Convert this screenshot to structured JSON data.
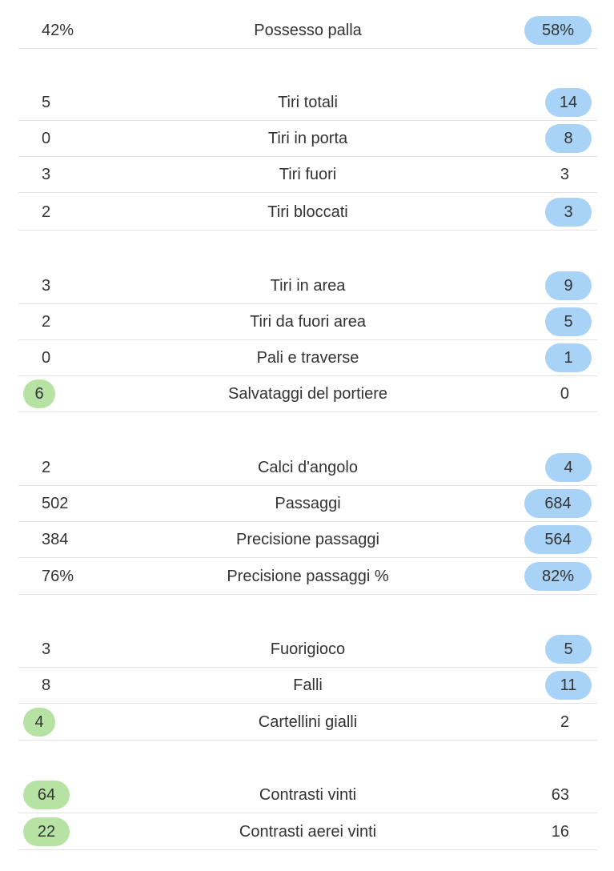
{
  "stats": [
    {
      "label": "Possesso palla",
      "home": "42%",
      "away": "58%",
      "highlight": "away"
    },
    {
      "label": "Tiri totali",
      "home": "5",
      "away": "14",
      "highlight": "away"
    },
    {
      "label": "Tiri in porta",
      "home": "0",
      "away": "8",
      "highlight": "away"
    },
    {
      "label": "Tiri fuori",
      "home": "3",
      "away": "3",
      "highlight": "none"
    },
    {
      "label": "Tiri bloccati",
      "home": "2",
      "away": "3",
      "highlight": "away"
    },
    {
      "label": "Tiri in area",
      "home": "3",
      "away": "9",
      "highlight": "away"
    },
    {
      "label": "Tiri da fuori area",
      "home": "2",
      "away": "5",
      "highlight": "away"
    },
    {
      "label": "Pali e traverse",
      "home": "0",
      "away": "1",
      "highlight": "away"
    },
    {
      "label": "Salvataggi del portiere",
      "home": "6",
      "away": "0",
      "highlight": "home"
    },
    {
      "label": "Calci d'angolo",
      "home": "2",
      "away": "4",
      "highlight": "away"
    },
    {
      "label": "Passaggi",
      "home": "502",
      "away": "684",
      "highlight": "away"
    },
    {
      "label": "Precisione passaggi",
      "home": "384",
      "away": "564",
      "highlight": "away"
    },
    {
      "label": "Precisione passaggi %",
      "home": "76%",
      "away": "82%",
      "highlight": "away"
    },
    {
      "label": "Fuorigioco",
      "home": "3",
      "away": "5",
      "highlight": "away"
    },
    {
      "label": "Falli",
      "home": "8",
      "away": "11",
      "highlight": "away"
    },
    {
      "label": "Cartellini gialli",
      "home": "4",
      "away": "2",
      "highlight": "home"
    },
    {
      "label": "Contrasti vinti",
      "home": "64",
      "away": "63",
      "highlight": "home"
    },
    {
      "label": "Contrasti aerei vinti",
      "home": "22",
      "away": "16",
      "highlight": "home"
    }
  ],
  "colors": {
    "home_highlight": "#b6e3a4",
    "away_highlight": "#a9d3f6",
    "divider": "#e3e3e3",
    "text": "#333333"
  }
}
